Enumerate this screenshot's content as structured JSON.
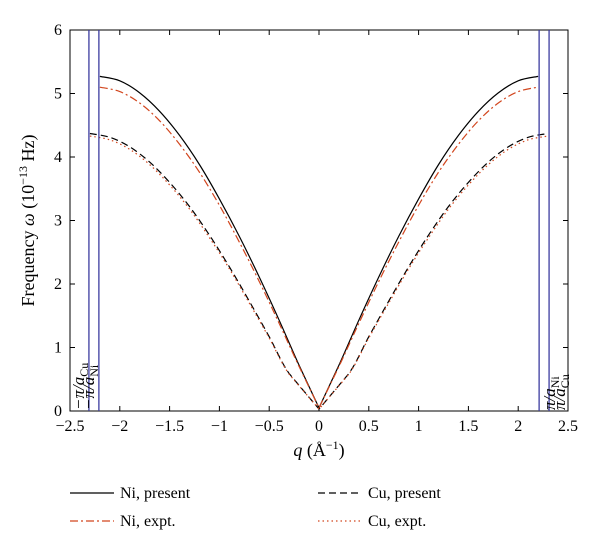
{
  "chart_data": {
    "type": "line",
    "xlabel": {
      "var": "q",
      "unit_open": " (Å",
      "unit_sup": "−1",
      "unit_close": ")"
    },
    "ylabel": {
      "prefix": "Frequency ",
      "var": "ω",
      "unit_open": " (10",
      "unit_sup": "−13",
      "unit_close": " Hz)"
    },
    "xlim": [
      -2.5,
      2.5
    ],
    "ylim": [
      0,
      6
    ],
    "xticks": [
      -2.5,
      -2,
      -1.5,
      -1,
      -0.5,
      0,
      0.5,
      1,
      1.5,
      2,
      2.5
    ],
    "xtick_labels": [
      "−2.5",
      "−2",
      "−1.5",
      "−1",
      "−0.5",
      "0",
      "0.5",
      "1",
      "1.5",
      "2",
      "2.5"
    ],
    "yticks": [
      0,
      1,
      2,
      3,
      4,
      5,
      6
    ],
    "ytick_labels": [
      "0",
      "1",
      "2",
      "3",
      "4",
      "5",
      "6"
    ],
    "legend_position": "below",
    "series": [
      {
        "name": "Ni, present",
        "color": "#000000",
        "dash": "solid",
        "points": [
          [
            -2.2,
            5.27
          ],
          [
            -2.0,
            5.2
          ],
          [
            -1.8,
            5.01
          ],
          [
            -1.6,
            4.72
          ],
          [
            -1.4,
            4.34
          ],
          [
            -1.2,
            3.88
          ],
          [
            -1.0,
            3.34
          ],
          [
            -0.8,
            2.75
          ],
          [
            -0.6,
            2.11
          ],
          [
            -0.4,
            1.43
          ],
          [
            -0.2,
            0.72
          ],
          [
            0,
            0.05
          ],
          [
            0.2,
            0.72
          ],
          [
            0.4,
            1.43
          ],
          [
            0.6,
            2.11
          ],
          [
            0.8,
            2.75
          ],
          [
            1.0,
            3.34
          ],
          [
            1.2,
            3.88
          ],
          [
            1.4,
            4.34
          ],
          [
            1.6,
            4.72
          ],
          [
            1.8,
            5.01
          ],
          [
            2.0,
            5.2
          ],
          [
            2.2,
            5.27
          ]
        ]
      },
      {
        "name": "Ni, expt.",
        "color": "#d2461e",
        "dash": "dashdot",
        "points": [
          [
            -2.2,
            5.1
          ],
          [
            -2.0,
            5.03
          ],
          [
            -1.8,
            4.85
          ],
          [
            -1.6,
            4.57
          ],
          [
            -1.4,
            4.2
          ],
          [
            -1.2,
            3.76
          ],
          [
            -1.0,
            3.24
          ],
          [
            -0.8,
            2.66
          ],
          [
            -0.6,
            2.04
          ],
          [
            -0.4,
            1.38
          ],
          [
            -0.2,
            0.7
          ],
          [
            0,
            0.05
          ],
          [
            0.2,
            0.7
          ],
          [
            0.4,
            1.38
          ],
          [
            0.6,
            2.04
          ],
          [
            0.8,
            2.66
          ],
          [
            1.0,
            3.24
          ],
          [
            1.2,
            3.76
          ],
          [
            1.4,
            4.2
          ],
          [
            1.6,
            4.57
          ],
          [
            1.8,
            4.85
          ],
          [
            2.0,
            5.03
          ],
          [
            2.2,
            5.1
          ]
        ]
      },
      {
        "name": "Cu, present",
        "color": "#000000",
        "dash": "dashed",
        "points": [
          [
            -2.3,
            4.37
          ],
          [
            -2.1,
            4.31
          ],
          [
            -1.9,
            4.16
          ],
          [
            -1.7,
            3.92
          ],
          [
            -1.5,
            3.6
          ],
          [
            -1.3,
            3.22
          ],
          [
            -1.1,
            2.77
          ],
          [
            -0.9,
            2.27
          ],
          [
            -0.7,
            1.73
          ],
          [
            -0.5,
            1.17
          ],
          [
            -0.3,
            0.59
          ],
          [
            0,
            0.03
          ],
          [
            0.3,
            0.59
          ],
          [
            0.5,
            1.17
          ],
          [
            0.7,
            1.73
          ],
          [
            0.9,
            2.27
          ],
          [
            1.1,
            2.77
          ],
          [
            1.3,
            3.22
          ],
          [
            1.5,
            3.6
          ],
          [
            1.7,
            3.92
          ],
          [
            1.9,
            4.16
          ],
          [
            2.1,
            4.31
          ],
          [
            2.3,
            4.37
          ]
        ]
      },
      {
        "name": "Cu, expt.",
        "color": "#d2461e",
        "dash": "dotted",
        "points": [
          [
            -2.3,
            4.33
          ],
          [
            -2.1,
            4.27
          ],
          [
            -1.9,
            4.12
          ],
          [
            -1.7,
            3.88
          ],
          [
            -1.5,
            3.56
          ],
          [
            -1.3,
            3.18
          ],
          [
            -1.1,
            2.73
          ],
          [
            -0.9,
            2.24
          ],
          [
            -0.7,
            1.7
          ],
          [
            -0.5,
            1.15
          ],
          [
            -0.3,
            0.58
          ],
          [
            0,
            0.03
          ],
          [
            0.3,
            0.58
          ],
          [
            0.5,
            1.15
          ],
          [
            0.7,
            1.7
          ],
          [
            0.9,
            2.24
          ],
          [
            1.1,
            2.73
          ],
          [
            1.3,
            3.18
          ],
          [
            1.5,
            3.56
          ],
          [
            1.7,
            3.88
          ],
          [
            1.9,
            4.12
          ],
          [
            2.1,
            4.27
          ],
          [
            2.3,
            4.33
          ]
        ]
      }
    ],
    "zone_boundaries": [
      {
        "x": -2.31,
        "color": "#3c3ca0",
        "label_main": "−π/a",
        "label_sub": "Cu",
        "side": "left"
      },
      {
        "x": -2.21,
        "color": "#3c3ca0",
        "label_main": "−π/a",
        "label_sub": "Ni",
        "side": "left"
      },
      {
        "x": 2.21,
        "color": "#3c3ca0",
        "label_main": "π/a",
        "label_sub": "Ni",
        "side": "right"
      },
      {
        "x": 2.31,
        "color": "#3c3ca0",
        "label_main": "π/a",
        "label_sub": "Cu",
        "side": "right"
      }
    ]
  }
}
